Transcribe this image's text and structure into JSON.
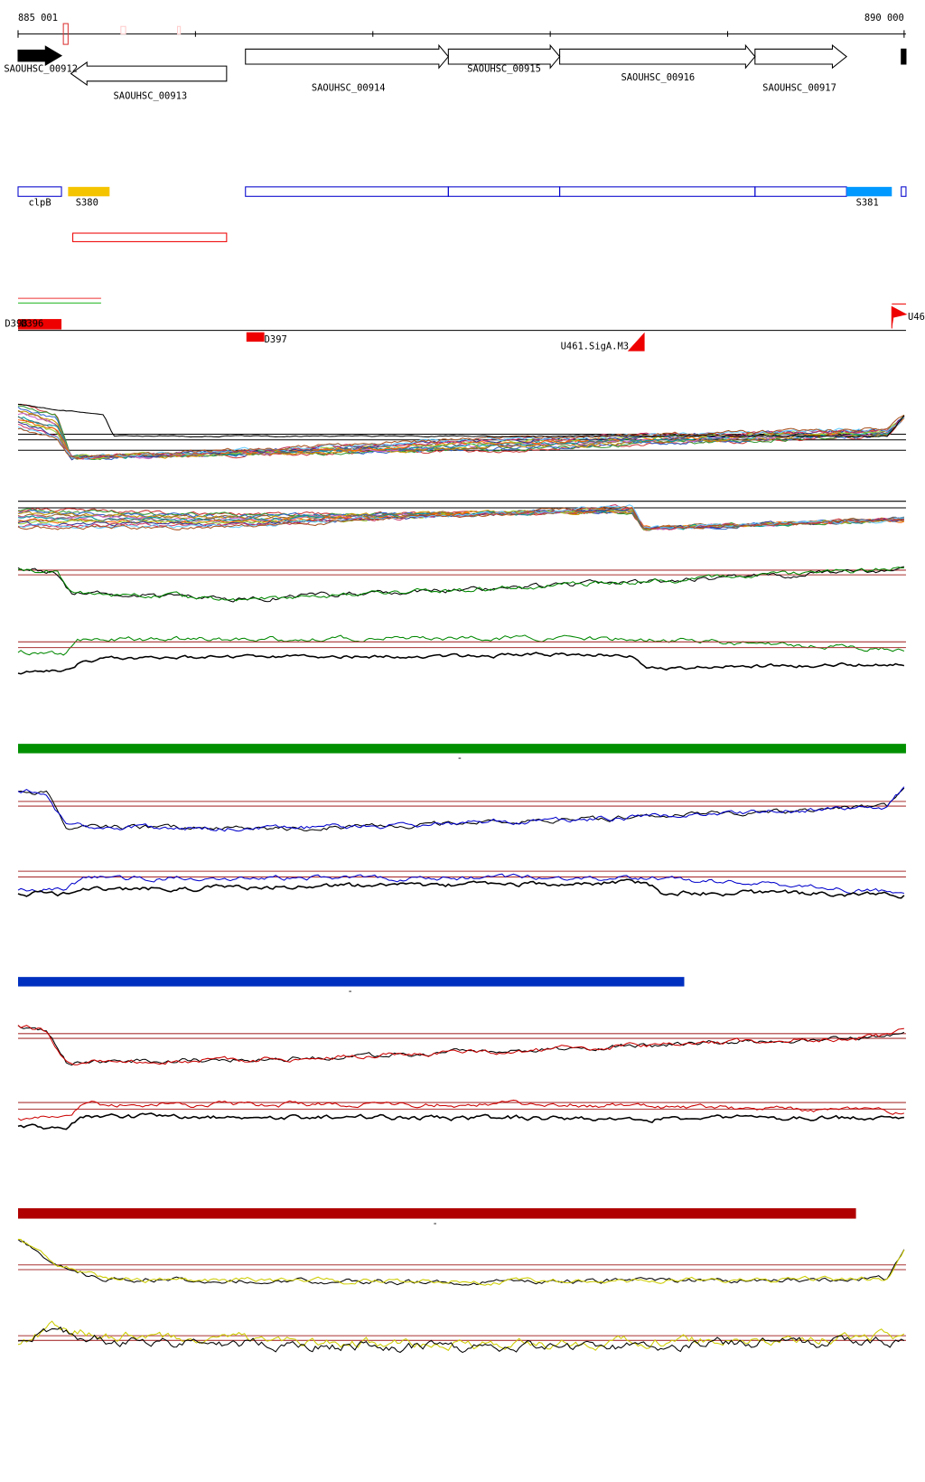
{
  "ruler": {
    "start": "885 001",
    "end": "890 000"
  },
  "genes": [
    "SAOUHSC_00912",
    "SAOUHSC_00913",
    "SAOUHSC_00914",
    "SAOUHSC_00915",
    "SAOUHSC_00916",
    "SAOUHSC_00917"
  ],
  "features": [
    "clpB",
    "S380",
    "S381"
  ],
  "promoters": [
    "D398",
    "D396",
    "D397",
    "U461.SigA.M3",
    "U46"
  ],
  "track_markers": [
    "-",
    "-",
    "-"
  ]
}
